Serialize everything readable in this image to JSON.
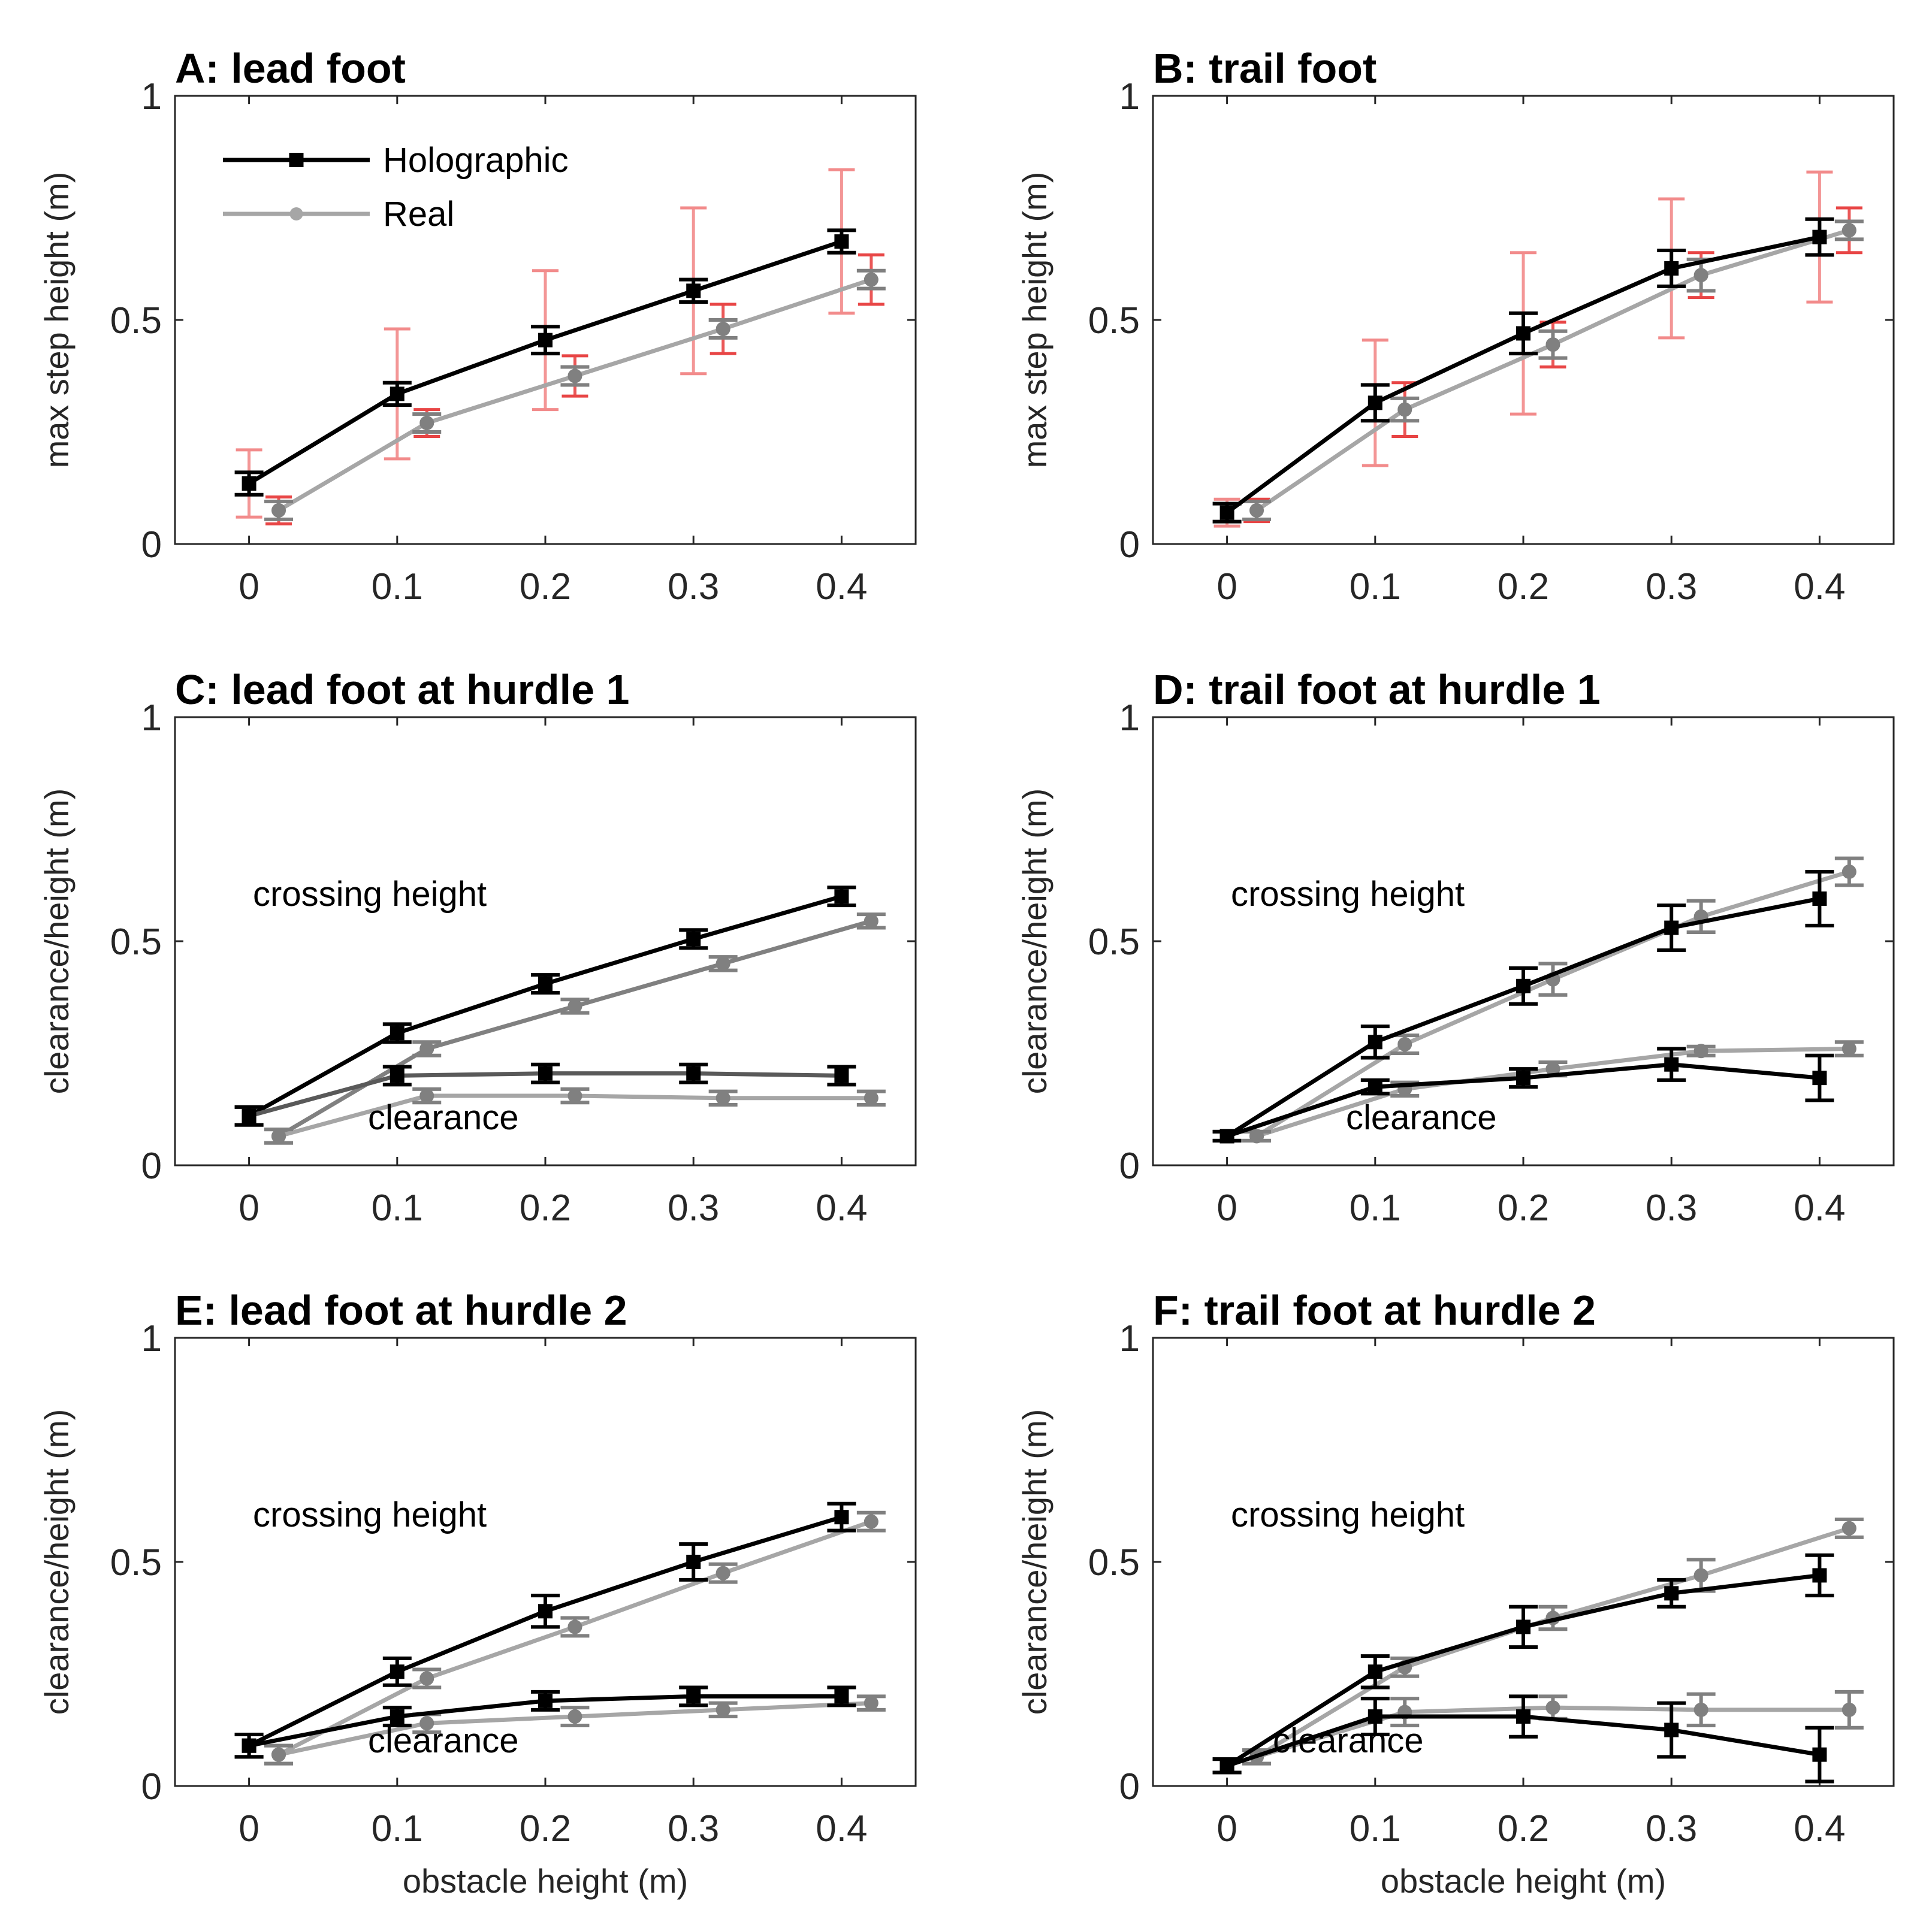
{
  "figure": {
    "x_values": [
      0,
      0.1,
      0.2,
      0.3,
      0.4
    ],
    "x_offset_real": 0.02,
    "legend": {
      "holographic": "Holographic",
      "real": "Real"
    },
    "colors": {
      "holographic": "#000000",
      "real": "#a6a6a6",
      "real_dark": "#808080",
      "crossing_holo_line": "#000000",
      "between_sd": "#f28b8b",
      "within_sd": "#e84545"
    }
  },
  "chart_data": [
    {
      "id": "A",
      "type": "line",
      "title": "A: lead foot",
      "xlabel": "",
      "ylabel": "max step height (m)",
      "xlim": [
        -0.05,
        0.45
      ],
      "ylim": [
        0,
        1
      ],
      "xticks": [
        "0",
        "0.1",
        "0.2",
        "0.3",
        "0.4"
      ],
      "yticks": [
        "0",
        "0.5",
        "1"
      ],
      "legend": true,
      "series": [
        {
          "name": "Holographic",
          "group": "main",
          "values": [
            0.135,
            0.335,
            0.455,
            0.565,
            0.675
          ],
          "err": [
            0.025,
            0.025,
            0.03,
            0.025,
            0.025
          ],
          "between_err": [
            0.075,
            0.145,
            0.155,
            0.185,
            0.16
          ]
        },
        {
          "name": "Real",
          "group": "main",
          "values": [
            0.075,
            0.27,
            0.375,
            0.48,
            0.59
          ],
          "err": [
            0.02,
            0.02,
            0.02,
            0.02,
            0.02
          ],
          "between_err": [
            0.03,
            0.03,
            0.045,
            0.055,
            0.055
          ]
        }
      ]
    },
    {
      "id": "B",
      "type": "line",
      "title": "B: trail foot",
      "xlabel": "",
      "ylabel": "max step height (m)",
      "xlim": [
        -0.05,
        0.45
      ],
      "ylim": [
        0,
        1
      ],
      "xticks": [
        "0",
        "0.1",
        "0.2",
        "0.3",
        "0.4"
      ],
      "yticks": [
        "0",
        "0.5",
        "1"
      ],
      "legend": false,
      "series": [
        {
          "name": "Holographic",
          "group": "main",
          "values": [
            0.07,
            0.315,
            0.47,
            0.615,
            0.685
          ],
          "err": [
            0.02,
            0.04,
            0.045,
            0.04,
            0.04
          ],
          "between_err": [
            0.03,
            0.14,
            0.18,
            0.155,
            0.145
          ]
        },
        {
          "name": "Real",
          "group": "main",
          "values": [
            0.075,
            0.3,
            0.445,
            0.6,
            0.7
          ],
          "err": [
            0.02,
            0.025,
            0.03,
            0.035,
            0.02
          ],
          "between_err": [
            0.025,
            0.06,
            0.05,
            0.05,
            0.05
          ]
        }
      ]
    },
    {
      "id": "C",
      "type": "line",
      "title": "C: lead foot at hurdle 1",
      "xlabel": "",
      "ylabel": "clearance/height (m)",
      "xlim": [
        -0.05,
        0.45
      ],
      "ylim": [
        0,
        1
      ],
      "xticks": [
        "0",
        "0.1",
        "0.2",
        "0.3",
        "0.4"
      ],
      "yticks": [
        "0",
        "0.5",
        "1"
      ],
      "legend": false,
      "annotations": [
        "crossing height",
        "clearance"
      ],
      "series": [
        {
          "name": "Holographic",
          "group": "crossing height",
          "values": [
            0.11,
            0.295,
            0.405,
            0.505,
            0.6
          ],
          "err": [
            0.02,
            0.02,
            0.02,
            0.02,
            0.02
          ]
        },
        {
          "name": "Real",
          "group": "crossing height",
          "values": [
            0.065,
            0.26,
            0.355,
            0.45,
            0.545
          ],
          "err": [
            0.015,
            0.015,
            0.015,
            0.015,
            0.015
          ]
        },
        {
          "name": "Holographic",
          "group": "clearance",
          "values": [
            0.11,
            0.2,
            0.205,
            0.205,
            0.2
          ],
          "err": [
            0.02,
            0.02,
            0.02,
            0.02,
            0.02
          ]
        },
        {
          "name": "Real",
          "group": "clearance",
          "values": [
            0.065,
            0.155,
            0.155,
            0.15,
            0.15
          ],
          "err": [
            0.015,
            0.015,
            0.015,
            0.015,
            0.015
          ]
        }
      ]
    },
    {
      "id": "D",
      "type": "line",
      "title": "D: trail foot at hurdle 1",
      "xlabel": "",
      "ylabel": "clearance/height (m)",
      "xlim": [
        -0.05,
        0.45
      ],
      "ylim": [
        0,
        1
      ],
      "xticks": [
        "0",
        "0.1",
        "0.2",
        "0.3",
        "0.4"
      ],
      "yticks": [
        "0",
        "0.5",
        "1"
      ],
      "legend": false,
      "annotations": [
        "crossing height",
        "clearance"
      ],
      "series": [
        {
          "name": "Holographic",
          "group": "crossing height",
          "values": [
            0.065,
            0.275,
            0.4,
            0.53,
            0.595
          ],
          "err": [
            0.01,
            0.035,
            0.04,
            0.05,
            0.06
          ]
        },
        {
          "name": "Real",
          "group": "crossing height",
          "values": [
            0.065,
            0.27,
            0.415,
            0.555,
            0.655
          ],
          "err": [
            0.01,
            0.02,
            0.035,
            0.035,
            0.03
          ]
        },
        {
          "name": "Holographic",
          "group": "clearance",
          "values": [
            0.065,
            0.175,
            0.195,
            0.225,
            0.195
          ],
          "err": [
            0.01,
            0.015,
            0.02,
            0.035,
            0.05
          ]
        },
        {
          "name": "Real",
          "group": "clearance",
          "values": [
            0.065,
            0.17,
            0.215,
            0.255,
            0.26
          ],
          "err": [
            0.01,
            0.015,
            0.015,
            0.01,
            0.015
          ]
        }
      ]
    },
    {
      "id": "E",
      "type": "line",
      "title": "E: lead foot at hurdle 2",
      "xlabel": "obstacle height (m)",
      "ylabel": "clearance/height (m)",
      "xlim": [
        -0.05,
        0.45
      ],
      "ylim": [
        0,
        1
      ],
      "xticks": [
        "0",
        "0.1",
        "0.2",
        "0.3",
        "0.4"
      ],
      "yticks": [
        "0",
        "0.5",
        "1"
      ],
      "legend": false,
      "annotations": [
        "crossing height",
        "clearance"
      ],
      "series": [
        {
          "name": "Holographic",
          "group": "crossing height",
          "values": [
            0.09,
            0.255,
            0.39,
            0.5,
            0.6
          ],
          "err": [
            0.025,
            0.03,
            0.035,
            0.04,
            0.03
          ]
        },
        {
          "name": "Real",
          "group": "crossing height",
          "values": [
            0.07,
            0.24,
            0.355,
            0.475,
            0.59
          ],
          "err": [
            0.02,
            0.02,
            0.02,
            0.02,
            0.02
          ]
        },
        {
          "name": "Holographic",
          "group": "clearance",
          "values": [
            0.09,
            0.155,
            0.19,
            0.2,
            0.2
          ],
          "err": [
            0.025,
            0.02,
            0.02,
            0.02,
            0.02
          ]
        },
        {
          "name": "Real",
          "group": "clearance",
          "values": [
            0.07,
            0.14,
            0.155,
            0.17,
            0.185
          ],
          "err": [
            0.02,
            0.02,
            0.02,
            0.015,
            0.015
          ]
        }
      ]
    },
    {
      "id": "F",
      "type": "line",
      "title": "F: trail foot at hurdle 2",
      "xlabel": "obstacle height (m)",
      "ylabel": "clearance/height (m)",
      "xlim": [
        -0.05,
        0.45
      ],
      "ylim": [
        0,
        1
      ],
      "xticks": [
        "0",
        "0.1",
        "0.2",
        "0.3",
        "0.4"
      ],
      "yticks": [
        "0",
        "0.5",
        "1"
      ],
      "legend": false,
      "annotations": [
        "crossing height",
        "clearance"
      ],
      "series": [
        {
          "name": "Holographic",
          "group": "crossing height",
          "values": [
            0.045,
            0.255,
            0.355,
            0.43,
            0.47
          ],
          "err": [
            0.015,
            0.035,
            0.045,
            0.03,
            0.045
          ]
        },
        {
          "name": "Real",
          "group": "crossing height",
          "values": [
            0.065,
            0.265,
            0.375,
            0.47,
            0.575
          ],
          "err": [
            0.015,
            0.02,
            0.025,
            0.035,
            0.02
          ]
        },
        {
          "name": "Holographic",
          "group": "clearance",
          "values": [
            0.045,
            0.155,
            0.155,
            0.125,
            0.07
          ],
          "err": [
            0.015,
            0.04,
            0.045,
            0.06,
            0.06
          ]
        },
        {
          "name": "Real",
          "group": "clearance",
          "values": [
            0.065,
            0.165,
            0.175,
            0.17,
            0.17
          ],
          "err": [
            0.015,
            0.03,
            0.025,
            0.035,
            0.04
          ]
        }
      ]
    }
  ]
}
